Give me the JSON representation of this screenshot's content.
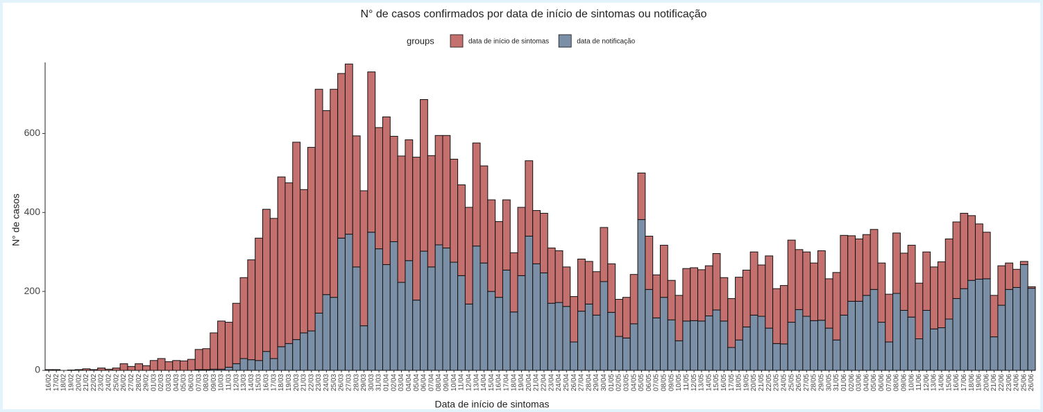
{
  "chart_data": {
    "type": "stacked-bar",
    "title": "N° de casos confirmados por data de início de sintomas ou notificação",
    "x_label": "Data de início de sintomas",
    "y_label": "N° de casos",
    "legend_title": "groups",
    "categories": [
      "16/02",
      "17/02",
      "18/02",
      "19/02",
      "20/02",
      "21/02",
      "22/02",
      "23/02",
      "24/02",
      "25/02",
      "26/02",
      "27/02",
      "28/02",
      "29/02",
      "01/03",
      "02/03",
      "03/03",
      "04/03",
      "05/03",
      "06/03",
      "07/03",
      "08/03",
      "09/03",
      "10/03",
      "11/03",
      "12/03",
      "13/03",
      "14/03",
      "15/03",
      "16/03",
      "17/03",
      "18/03",
      "19/03",
      "20/03",
      "21/03",
      "22/03",
      "23/03",
      "24/03",
      "25/03",
      "26/03",
      "27/03",
      "28/03",
      "29/03",
      "30/03",
      "31/03",
      "01/04",
      "02/04",
      "03/04",
      "04/04",
      "05/04",
      "06/04",
      "07/04",
      "08/04",
      "09/04",
      "10/04",
      "11/04",
      "12/04",
      "13/04",
      "14/04",
      "15/04",
      "16/04",
      "17/04",
      "18/04",
      "19/04",
      "20/04",
      "21/04",
      "22/04",
      "23/04",
      "24/04",
      "25/04",
      "26/04",
      "27/04",
      "28/04",
      "29/04",
      "30/04",
      "01/05",
      "02/05",
      "03/05",
      "04/05",
      "05/05",
      "06/05",
      "07/05",
      "08/05",
      "09/05",
      "10/05",
      "11/05",
      "12/05",
      "13/05",
      "14/05",
      "15/05",
      "16/05",
      "17/05",
      "18/05",
      "19/05",
      "20/05",
      "21/05",
      "22/05",
      "23/05",
      "24/05",
      "25/05",
      "26/05",
      "27/05",
      "28/05",
      "29/05",
      "30/05",
      "31/05",
      "01/06",
      "02/06",
      "03/06",
      "04/06",
      "05/06",
      "06/06",
      "07/06",
      "08/06",
      "09/06",
      "10/06",
      "11/06",
      "12/06",
      "13/06",
      "14/06",
      "15/06",
      "16/06",
      "17/06",
      "18/06",
      "19/06",
      "20/06",
      "21/06",
      "22/06",
      "23/06",
      "24/06",
      "25/06",
      "26/06"
    ],
    "series": [
      {
        "name": "data de início de sintomas",
        "color": "#c4706f",
        "values": [
          2,
          2,
          0,
          1,
          2,
          4,
          2,
          6,
          3,
          6,
          17,
          10,
          17,
          12,
          25,
          30,
          22,
          25,
          24,
          28,
          51,
          53,
          92,
          122,
          114,
          153,
          205,
          253,
          310,
          360,
          355,
          430,
          407,
          500,
          363,
          465,
          567,
          466,
          527,
          417,
          431,
          332,
          342,
          406,
          307,
          374,
          267,
          320,
          306,
          362,
          384,
          282,
          277,
          285,
          261,
          230,
          245,
          261,
          246,
          232,
          192,
          178,
          150,
          173,
          191,
          135,
          151,
          140,
          131,
          100,
          115,
          132,
          108,
          110,
          137,
          123,
          94,
          103,
          125,
          118,
          135,
          109,
          132,
          100,
          115,
          133,
          134,
          130,
          127,
          143,
          110,
          124,
          159,
          144,
          160,
          130,
          183,
          139,
          148,
          208,
          152,
          163,
          146,
          176,
          125,
          171,
          202,
          166,
          158,
          154,
          152,
          150,
          121,
          153,
          145,
          182,
          141,
          148,
          157,
          167,
          203,
          194,
          191,
          164,
          140,
          118,
          105,
          100,
          67,
          46,
          8,
          4
        ]
      },
      {
        "name": "data de notificação",
        "color": "#7b8fa6",
        "values": [
          0,
          0,
          0,
          0,
          0,
          0,
          0,
          0,
          0,
          0,
          0,
          0,
          0,
          0,
          0,
          0,
          0,
          0,
          0,
          0,
          2,
          2,
          3,
          3,
          8,
          17,
          30,
          27,
          25,
          48,
          30,
          60,
          68,
          78,
          95,
          100,
          145,
          192,
          185,
          335,
          345,
          262,
          113,
          350,
          308,
          268,
          326,
          223,
          278,
          178,
          302,
          262,
          318,
          310,
          274,
          240,
          168,
          315,
          272,
          200,
          185,
          254,
          148,
          240,
          340,
          270,
          247,
          170,
          172,
          162,
          72,
          150,
          168,
          140,
          225,
          147,
          86,
          82,
          118,
          382,
          205,
          133,
          185,
          128,
          75,
          125,
          126,
          125,
          138,
          153,
          125,
          58,
          77,
          110,
          140,
          137,
          107,
          68,
          67,
          122,
          154,
          137,
          126,
          127,
          107,
          77,
          140,
          175,
          175,
          190,
          205,
          122,
          72,
          195,
          152,
          135,
          80,
          152,
          105,
          108,
          130,
          182,
          207,
          228,
          231,
          232,
          85,
          165,
          205,
          210,
          268,
          208
        ]
      }
    ],
    "ylim": [
      0,
      780
    ],
    "yticks": [
      0,
      200,
      400,
      600
    ]
  }
}
